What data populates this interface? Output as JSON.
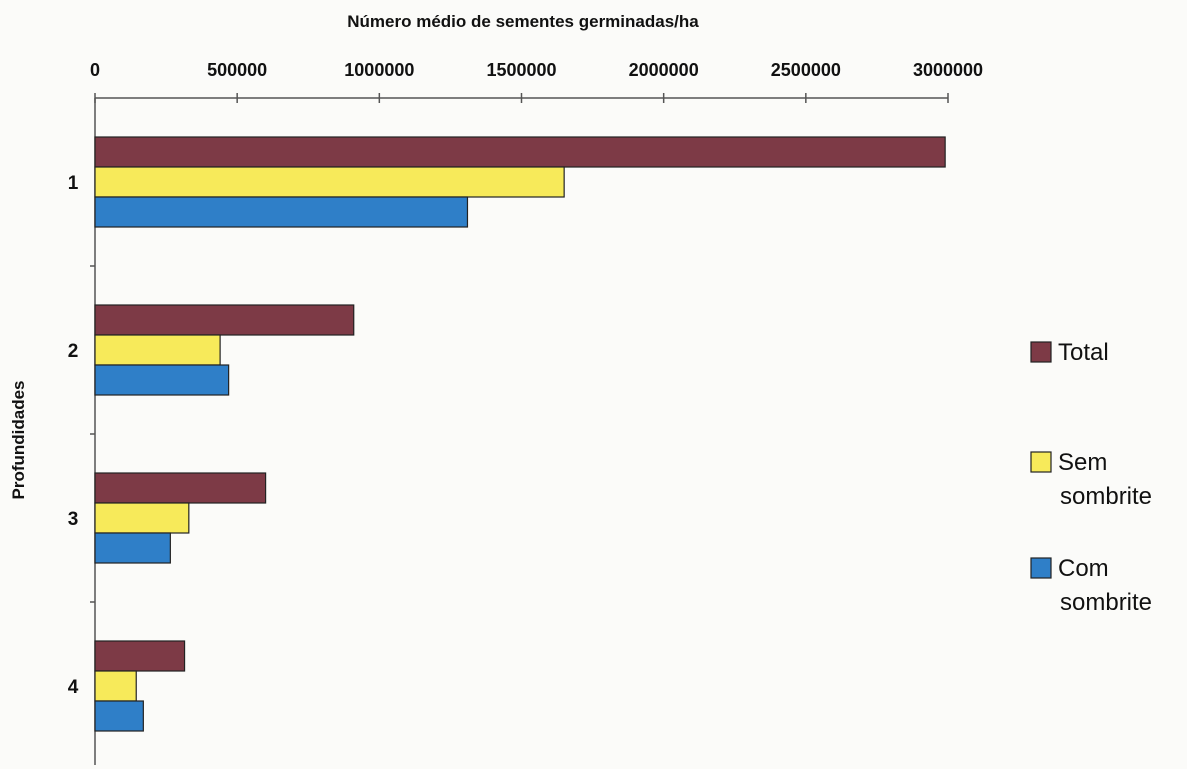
{
  "chart_data": {
    "type": "bar",
    "orientation": "horizontal",
    "title": "",
    "xlabel": "Número médio de sementes germinadas/ha",
    "ylabel": "Profundidades",
    "xaxis_position": "top",
    "xlim": [
      0,
      3000000
    ],
    "xticks": [
      "0",
      "500000",
      "1000000",
      "1500000",
      "2000000",
      "2500000",
      "3000000"
    ],
    "categories": [
      "1",
      "2",
      "3",
      "4"
    ],
    "series": [
      {
        "name": "Total",
        "color": "#7d3a46",
        "values": [
          2990000,
          910000,
          600000,
          315000
        ]
      },
      {
        "name": "Sem sombrite",
        "color": "#f7ea5a",
        "values": [
          1650000,
          440000,
          330000,
          145000
        ]
      },
      {
        "name": "Com sombrite",
        "color": "#2f7fc8",
        "values": [
          1310000,
          470000,
          265000,
          170000
        ]
      }
    ],
    "legend": {
      "placement": "right",
      "entries": [
        {
          "line1": "Total",
          "line2": ""
        },
        {
          "line1": "Sem",
          "line2": "sombrite"
        },
        {
          "line1": "Com",
          "line2": "sombrite"
        }
      ]
    },
    "grid": false
  }
}
